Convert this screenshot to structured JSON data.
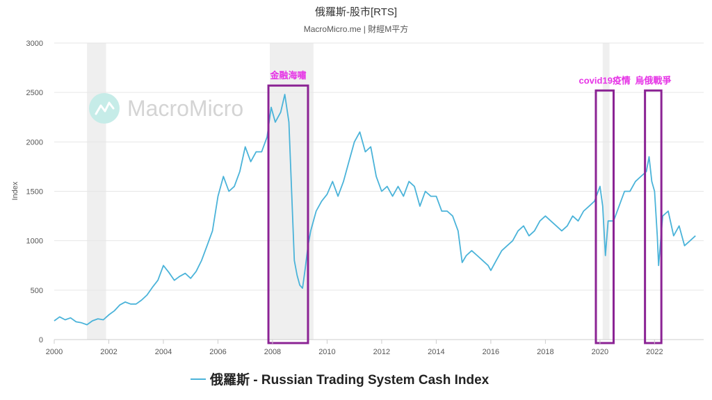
{
  "chart_data": {
    "type": "line",
    "title": "俄羅斯-股市[RTS]",
    "subtitle": "MacroMicro.me | 財經M平方",
    "ylabel": "Index",
    "xlim": [
      2000,
      2023.8
    ],
    "ylim": [
      0,
      3000
    ],
    "x_ticks": [
      "2000",
      "2002",
      "2004",
      "2006",
      "2008",
      "2010",
      "2012",
      "2014",
      "2016",
      "2018",
      "2020",
      "2022"
    ],
    "y_ticks": [
      "0",
      "500",
      "1000",
      "1500",
      "2000",
      "2500",
      "3000"
    ],
    "grid": true,
    "legend": "bottom-center",
    "watermark": "MacroMicro",
    "colors": {
      "line": "#4ab3d9",
      "recession": "#efefef",
      "highlight_box": "#8b2394",
      "annotation_text": "#e633e6",
      "watermark_icon": "#c6ece8"
    },
    "recession_bands": [
      [
        2001.2,
        2001.9
      ],
      [
        2007.9,
        2009.5
      ],
      [
        2020.1,
        2020.35
      ]
    ],
    "highlights": [
      {
        "label": "金融海嘯",
        "x_from": 2007.85,
        "x_to": 2009.3,
        "y_from": 0,
        "y_to": 2570
      },
      {
        "label": "covid19疫情",
        "x_from": 2019.85,
        "x_to": 2020.5,
        "y_from": 0,
        "y_to": 2520
      },
      {
        "label": "烏俄戰爭",
        "x_from": 2021.65,
        "x_to": 2022.25,
        "y_from": 0,
        "y_to": 2520
      }
    ],
    "series": [
      {
        "name": "俄羅斯 - Russian Trading System Cash Index",
        "x": [
          2000.0,
          2000.2,
          2000.4,
          2000.6,
          2000.8,
          2001.0,
          2001.2,
          2001.4,
          2001.6,
          2001.8,
          2002.0,
          2002.2,
          2002.4,
          2002.6,
          2002.8,
          2003.0,
          2003.2,
          2003.4,
          2003.6,
          2003.8,
          2004.0,
          2004.2,
          2004.4,
          2004.6,
          2004.8,
          2005.0,
          2005.2,
          2005.4,
          2005.6,
          2005.8,
          2006.0,
          2006.2,
          2006.4,
          2006.6,
          2006.8,
          2007.0,
          2007.2,
          2007.4,
          2007.6,
          2007.8,
          2007.95,
          2008.1,
          2008.3,
          2008.45,
          2008.6,
          2008.7,
          2008.8,
          2008.9,
          2009.0,
          2009.1,
          2009.2,
          2009.3,
          2009.4,
          2009.6,
          2009.8,
          2010.0,
          2010.2,
          2010.4,
          2010.6,
          2010.8,
          2011.0,
          2011.2,
          2011.4,
          2011.6,
          2011.8,
          2012.0,
          2012.2,
          2012.4,
          2012.6,
          2012.8,
          2013.0,
          2013.2,
          2013.4,
          2013.6,
          2013.8,
          2014.0,
          2014.2,
          2014.4,
          2014.6,
          2014.8,
          2014.95,
          2015.1,
          2015.3,
          2015.5,
          2015.7,
          2015.9,
          2016.0,
          2016.2,
          2016.4,
          2016.6,
          2016.8,
          2017.0,
          2017.2,
          2017.4,
          2017.6,
          2017.8,
          2018.0,
          2018.2,
          2018.4,
          2018.6,
          2018.8,
          2019.0,
          2019.2,
          2019.4,
          2019.6,
          2019.8,
          2020.0,
          2020.1,
          2020.2,
          2020.3,
          2020.5,
          2020.7,
          2020.9,
          2021.1,
          2021.3,
          2021.5,
          2021.7,
          2021.8,
          2021.9,
          2022.0,
          2022.1,
          2022.15,
          2022.3,
          2022.5,
          2022.7,
          2022.9,
          2023.1,
          2023.3,
          2023.5
        ],
        "values": [
          190,
          230,
          200,
          220,
          180,
          170,
          150,
          190,
          210,
          200,
          250,
          290,
          350,
          380,
          360,
          360,
          400,
          450,
          530,
          600,
          750,
          680,
          600,
          640,
          670,
          620,
          690,
          800,
          950,
          1100,
          1450,
          1650,
          1500,
          1550,
          1700,
          1950,
          1800,
          1900,
          1900,
          2050,
          2350,
          2200,
          2300,
          2480,
          2200,
          1500,
          800,
          650,
          550,
          520,
          720,
          950,
          1100,
          1300,
          1400,
          1470,
          1600,
          1450,
          1600,
          1800,
          2000,
          2100,
          1900,
          1950,
          1650,
          1500,
          1550,
          1450,
          1550,
          1450,
          1600,
          1550,
          1350,
          1500,
          1450,
          1450,
          1300,
          1300,
          1250,
          1100,
          780,
          850,
          900,
          850,
          800,
          750,
          700,
          800,
          900,
          950,
          1000,
          1100,
          1150,
          1050,
          1100,
          1200,
          1250,
          1200,
          1150,
          1100,
          1150,
          1250,
          1200,
          1300,
          1350,
          1400,
          1550,
          1350,
          850,
          1200,
          1200,
          1350,
          1500,
          1500,
          1600,
          1650,
          1700,
          1850,
          1600,
          1500,
          1050,
          750,
          1250,
          1300,
          1050,
          1150,
          950,
          1000,
          1050
        ]
      }
    ]
  }
}
